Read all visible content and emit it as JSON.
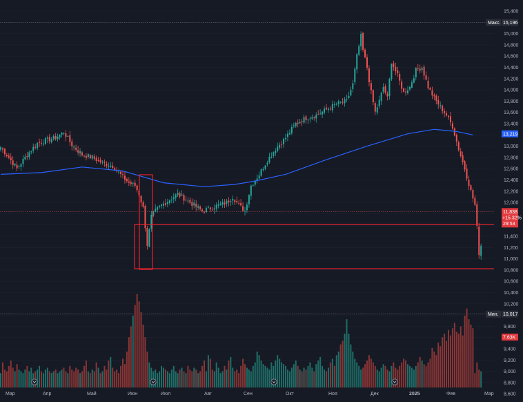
{
  "chart_data": {
    "type": "candlestick",
    "x_axis": [
      "Мар",
      "Апр",
      "Май",
      "Июн",
      "Июл",
      "Авг",
      "Сен",
      "Окт",
      "Ноя",
      "Дек",
      "2025",
      "Фев",
      "Мар"
    ],
    "y_axis_ticks": [
      "15,400",
      "15,200",
      "15,000",
      "14,800",
      "14,600",
      "14,400",
      "14,200",
      "14,000",
      "13,800",
      "13,600",
      "13,400",
      "13,200",
      "13,000",
      "12,800",
      "12,600",
      "12,400",
      "12,200",
      "12,000",
      "11,800",
      "11,600",
      "11,400",
      "11,200",
      "11,000",
      "10,800",
      "10,600",
      "10,400",
      "10,200",
      "10,000",
      "9,800",
      "9,600",
      "9,400",
      "9,200",
      "9,000",
      "8,800",
      "8,600"
    ],
    "ylim": [
      8600,
      15400
    ],
    "moving_average_color": "#2962ff",
    "up_color": "#26a69a",
    "down_color": "#ef5350",
    "price_key_points": [
      [
        0,
        12980
      ],
      [
        4,
        12800
      ],
      [
        8,
        12600
      ],
      [
        13,
        12850
      ],
      [
        18,
        13050
      ],
      [
        22,
        13100
      ],
      [
        27,
        13150
      ],
      [
        31,
        13250
      ],
      [
        35,
        13020
      ],
      [
        40,
        12850
      ],
      [
        45,
        12800
      ],
      [
        50,
        12700
      ],
      [
        55,
        12650
      ],
      [
        60,
        12450
      ],
      [
        63,
        12350
      ],
      [
        66,
        12300
      ],
      [
        68,
        12150
      ],
      [
        70,
        11900
      ],
      [
        72,
        11250
      ],
      [
        74,
        11750
      ],
      [
        76,
        11850
      ],
      [
        79,
        11950
      ],
      [
        83,
        12050
      ],
      [
        87,
        12150
      ],
      [
        91,
        12050
      ],
      [
        95,
        11950
      ],
      [
        99,
        11850
      ],
      [
        103,
        11900
      ],
      [
        107,
        11950
      ],
      [
        111,
        12000
      ],
      [
        114,
        12100
      ],
      [
        117,
        11950
      ],
      [
        120,
        11850
      ],
      [
        123,
        12300
      ],
      [
        127,
        12500
      ],
      [
        131,
        12750
      ],
      [
        135,
        12950
      ],
      [
        140,
        13150
      ],
      [
        145,
        13400
      ],
      [
        150,
        13500
      ],
      [
        155,
        13550
      ],
      [
        160,
        13650
      ],
      [
        165,
        13750
      ],
      [
        170,
        13800
      ],
      [
        173,
        14100
      ],
      [
        175,
        14600
      ],
      [
        177,
        14950
      ],
      [
        178,
        14700
      ],
      [
        180,
        14400
      ],
      [
        182,
        13950
      ],
      [
        184,
        13600
      ],
      [
        186,
        13800
      ],
      [
        188,
        14050
      ],
      [
        190,
        13850
      ],
      [
        192,
        14500
      ],
      [
        195,
        14250
      ],
      [
        198,
        13950
      ],
      [
        201,
        14050
      ],
      [
        204,
        14350
      ],
      [
        207,
        14400
      ],
      [
        210,
        14050
      ],
      [
        213,
        13850
      ],
      [
        216,
        13700
      ],
      [
        219,
        13550
      ],
      [
        222,
        13350
      ],
      [
        225,
        12950
      ],
      [
        228,
        12600
      ],
      [
        231,
        12200
      ],
      [
        233,
        11950
      ],
      [
        234,
        11550
      ],
      [
        235,
        11100
      ],
      [
        236,
        11240
      ]
    ],
    "moving_average_points": [
      [
        0,
        12500
      ],
      [
        20,
        12530
      ],
      [
        40,
        12630
      ],
      [
        60,
        12560
      ],
      [
        80,
        12350
      ],
      [
        100,
        12280
      ],
      [
        115,
        12320
      ],
      [
        125,
        12380
      ],
      [
        140,
        12500
      ],
      [
        160,
        12760
      ],
      [
        180,
        13000
      ],
      [
        200,
        13220
      ],
      [
        213,
        13300
      ],
      [
        224,
        13260
      ],
      [
        232,
        13200
      ]
    ],
    "volume_values": [
      8,
      14,
      10,
      9,
      12,
      15,
      11,
      9,
      13,
      10,
      9,
      8,
      10,
      12,
      9,
      11,
      8,
      9,
      10,
      12,
      9,
      8,
      10,
      11,
      9,
      8,
      9,
      10,
      8,
      9,
      10,
      11,
      9,
      8,
      12,
      10,
      9,
      11,
      10,
      8,
      9,
      12,
      15,
      9,
      8,
      10,
      9,
      14,
      11,
      8,
      9,
      12,
      10,
      15,
      17,
      11,
      9,
      10,
      8,
      12,
      16,
      13,
      20,
      28,
      34,
      40,
      46,
      52,
      48,
      42,
      35,
      28,
      20,
      14,
      11,
      9,
      10,
      8,
      9,
      12,
      11,
      10,
      9,
      8,
      10,
      12,
      9,
      8,
      10,
      11,
      9,
      8,
      12,
      10,
      9,
      11,
      10,
      8,
      9,
      12,
      15,
      9,
      18,
      16,
      10,
      9,
      14,
      11,
      8,
      9,
      12,
      10,
      15,
      17,
      11,
      9,
      10,
      8,
      12,
      16,
      13,
      11,
      10,
      9,
      12,
      14,
      20,
      18,
      15,
      13,
      12,
      11,
      10,
      14,
      12,
      15,
      18,
      16,
      14,
      13,
      12,
      10,
      9,
      11,
      13,
      15,
      12,
      10,
      9,
      11,
      10,
      12,
      14,
      11,
      9,
      13,
      15,
      17,
      12,
      10,
      9,
      11,
      14,
      16,
      12,
      18,
      20,
      24,
      26,
      30,
      38,
      30,
      24,
      20,
      16,
      14,
      12,
      10,
      11,
      13,
      15,
      18,
      16,
      14,
      12,
      10,
      9,
      11,
      13,
      12,
      10,
      9,
      12,
      14,
      11,
      10,
      12,
      14,
      16,
      15,
      13,
      12,
      11,
      10,
      12,
      14,
      17,
      15,
      13,
      12,
      14,
      16,
      22,
      20,
      18,
      25,
      23,
      28,
      30,
      26,
      32,
      29,
      33,
      36,
      31,
      30,
      34,
      29,
      40,
      44,
      38,
      35,
      33
    ]
  },
  "price_tags": {
    "max_label": "Макс.",
    "max_value": "15,196",
    "ma_value": "13,219",
    "current_price": "11,838",
    "change_pct": "+15.32%",
    "countdown": "29:53",
    "min_label": "Мин.",
    "min_value": "10,017",
    "volume_value": "7.63K"
  }
}
